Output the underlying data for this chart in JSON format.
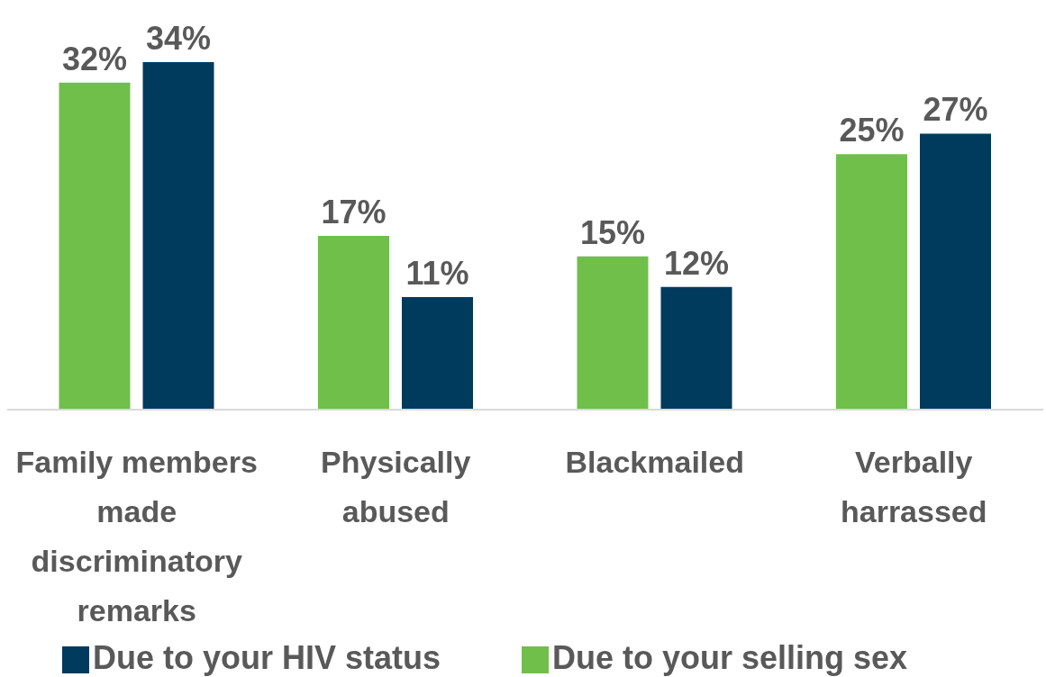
{
  "chart_data": {
    "type": "bar",
    "categories": [
      "Family members made discriminatory remarks",
      "Physically abused",
      "Blackmailed",
      "Verbally harrassed"
    ],
    "series": [
      {
        "name": "Due to your selling sex",
        "color": "#70bf4b",
        "values": [
          32,
          17,
          15,
          25
        ],
        "value_labels": [
          "32%",
          "17%",
          "15%",
          "25%"
        ]
      },
      {
        "name": "Due to your HIV status",
        "color": "#003a5c",
        "values": [
          34,
          11,
          12,
          27
        ],
        "value_labels": [
          "34%",
          "11%",
          "12%",
          "27%"
        ]
      }
    ],
    "legend": "bottom",
    "grid": false
  }
}
